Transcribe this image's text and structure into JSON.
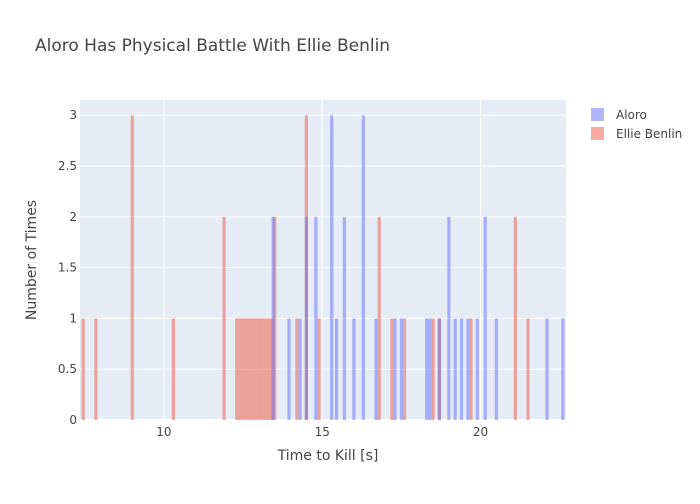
{
  "chart_data": {
    "type": "bar",
    "title": "Aloro Has Physical Battle With Ellie Benlin",
    "xlabel": "Time to Kill [s]",
    "ylabel": "Number of Times",
    "xlim": [
      7.35,
      22.7
    ],
    "ylim": [
      0,
      3.15
    ],
    "xticks": [
      10,
      15,
      20
    ],
    "yticks": [
      0,
      0.5,
      1,
      1.5,
      2,
      2.5,
      3
    ],
    "grid": true,
    "legend_position": "top-right",
    "bar_width": 0.1,
    "series": [
      {
        "name": "Aloro",
        "color": "#636efa",
        "x": [
          13.45,
          13.95,
          14.3,
          14.5,
          14.8,
          15.3,
          15.45,
          15.7,
          16.0,
          16.3,
          16.7,
          17.3,
          17.5,
          18.3,
          18.4,
          18.7,
          19.0,
          19.2,
          19.4,
          19.6,
          19.9,
          20.15,
          20.5,
          22.1,
          22.6
        ],
        "values": [
          2,
          1,
          1,
          2,
          2,
          3,
          1,
          2,
          1,
          3,
          1,
          1,
          1,
          1,
          1,
          1,
          2,
          1,
          1,
          1,
          1,
          2,
          1,
          1,
          1
        ]
      },
      {
        "name": "Ellie Benlin",
        "color": "#ef553b",
        "x": [
          7.45,
          7.85,
          9.0,
          10.3,
          11.9,
          12.3,
          12.4,
          12.5,
          12.6,
          12.7,
          12.8,
          12.9,
          13.0,
          13.1,
          13.2,
          13.3,
          13.4,
          13.5,
          14.2,
          14.5,
          14.9,
          16.8,
          17.2,
          17.6,
          18.5,
          18.7,
          19.7,
          21.1,
          21.5
        ],
        "values": [
          1,
          1,
          3,
          1,
          2,
          1,
          1,
          1,
          1,
          1,
          1,
          1,
          1,
          1,
          1,
          1,
          1,
          2,
          1,
          3,
          1,
          2,
          1,
          1,
          1,
          1,
          1,
          2,
          1
        ]
      }
    ]
  }
}
